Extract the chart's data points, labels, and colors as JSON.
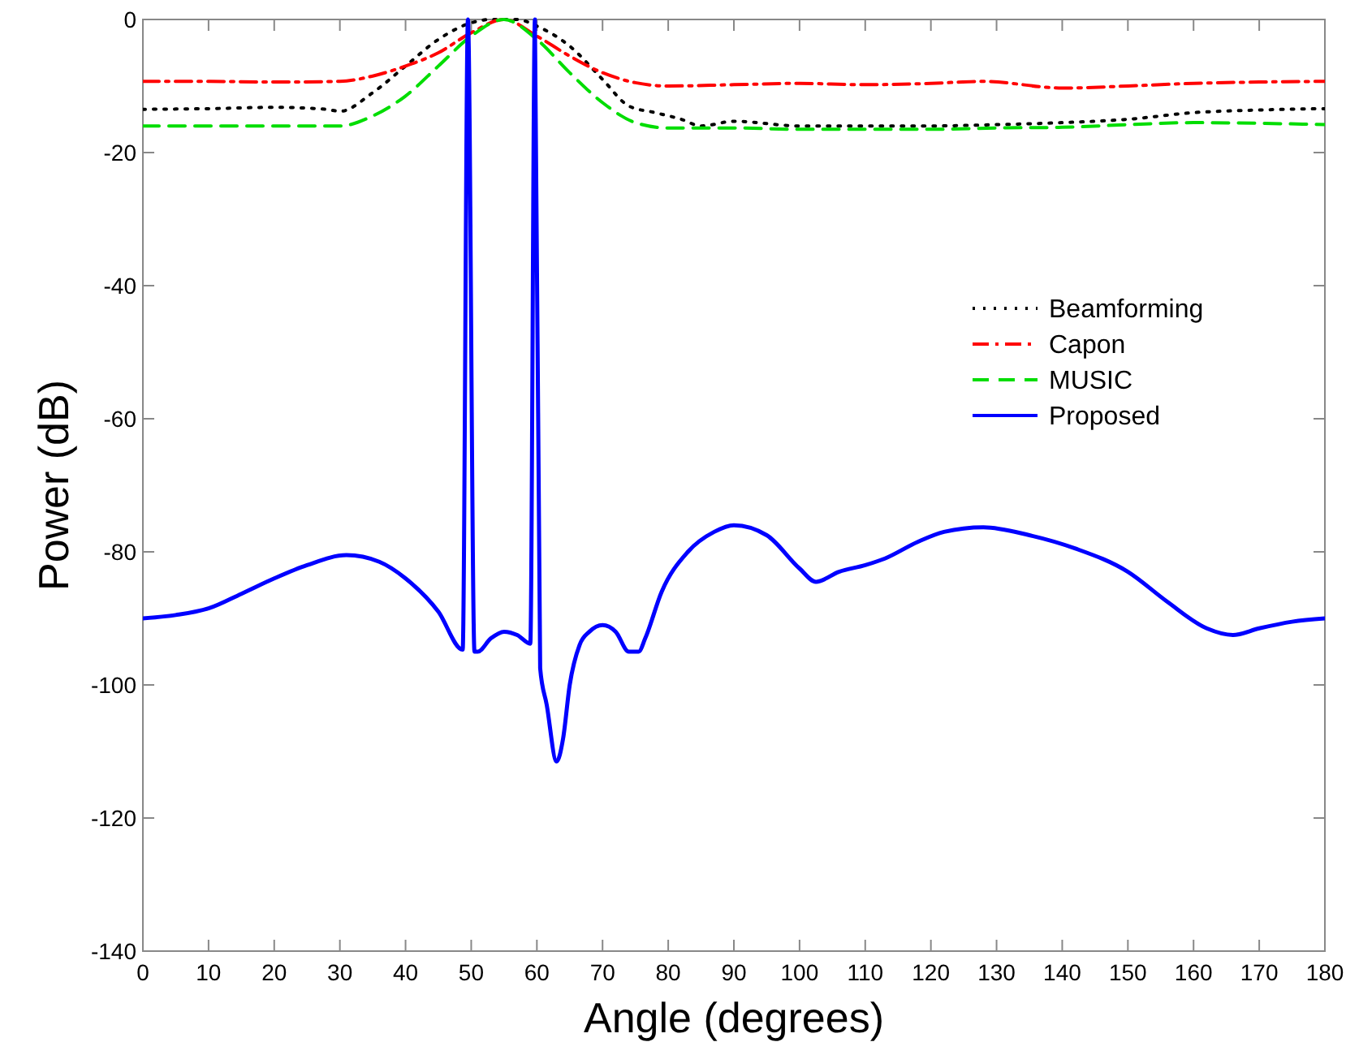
{
  "chart_data": {
    "type": "line",
    "xlabel": "Angle (degrees)",
    "ylabel": "Power (dB)",
    "xlim": [
      0,
      180
    ],
    "xticks": [
      0,
      10,
      20,
      30,
      40,
      50,
      60,
      70,
      80,
      90,
      100,
      110,
      120,
      130,
      140,
      150,
      160,
      170,
      180
    ],
    "ylim": [
      -140,
      0
    ],
    "yticks": [
      -140,
      -120,
      -100,
      -80,
      -60,
      -40,
      -20,
      0
    ],
    "grid": false,
    "legend": "right",
    "series": [
      {
        "name": "Beamforming",
        "color": "#000000",
        "line_style": "dotted",
        "x": [
          0,
          10,
          20,
          28,
          30,
          35,
          40,
          45,
          50,
          53,
          57,
          60,
          65,
          70,
          74,
          78,
          82,
          85,
          90,
          100,
          110,
          120,
          130,
          140,
          150,
          160,
          170,
          180
        ],
        "values": [
          -13.5,
          -13.4,
          -13.2,
          -13.5,
          -13.8,
          -11,
          -7,
          -3,
          -0.5,
          0,
          0,
          -1,
          -4,
          -9,
          -13,
          -14,
          -15,
          -16,
          -15.3,
          -16,
          -16,
          -16,
          -15.8,
          -15.5,
          -15,
          -14,
          -13.6,
          -13.4
        ]
      },
      {
        "name": "Capon",
        "color": "#ff0000",
        "line_style": "dashdot",
        "x": [
          0,
          10,
          20,
          30,
          35,
          40,
          45,
          50,
          55,
          60,
          65,
          70,
          75,
          80,
          90,
          100,
          110,
          120,
          128,
          140,
          150,
          160,
          170,
          180
        ],
        "values": [
          -9.3,
          -9.3,
          -9.4,
          -9.3,
          -8.5,
          -7,
          -5,
          -2,
          0,
          -2.5,
          -5.5,
          -8,
          -9.5,
          -10,
          -9.8,
          -9.6,
          -9.8,
          -9.6,
          -9.3,
          -10.3,
          -10,
          -9.6,
          -9.4,
          -9.3
        ]
      },
      {
        "name": "MUSIC",
        "color": "#00dd00",
        "line_style": "dashed",
        "x": [
          0,
          10,
          20,
          30,
          35,
          40,
          45,
          50,
          55,
          60,
          65,
          70,
          75,
          80,
          90,
          100,
          110,
          120,
          130,
          140,
          150,
          160,
          170,
          180
        ],
        "values": [
          -16,
          -16,
          -16,
          -16,
          -14.5,
          -11.5,
          -7,
          -2.5,
          0,
          -3,
          -8,
          -12.5,
          -15.5,
          -16.3,
          -16.3,
          -16.5,
          -16.5,
          -16.5,
          -16.3,
          -16.2,
          -15.8,
          -15.5,
          -15.6,
          -15.8
        ]
      },
      {
        "name": "Proposed",
        "color": "#0000ff",
        "line_style": "solid",
        "x": [
          0,
          5,
          10,
          15,
          20,
          25,
          31,
          36,
          40,
          45,
          48.7,
          49.5,
          50.5,
          51,
          53,
          55,
          57,
          59,
          59.7,
          60.5,
          61.5,
          63,
          64,
          65,
          66.5,
          68,
          70,
          72,
          74,
          75.5,
          76.5,
          79,
          83,
          87,
          90,
          95,
          100,
          102.5,
          106,
          110,
          113,
          118,
          122,
          128,
          135,
          142,
          150,
          156,
          162,
          166,
          170,
          175,
          180
        ],
        "values": [
          -90,
          -89.5,
          -88.5,
          -86.3,
          -84,
          -82,
          -80.5,
          -81.5,
          -84,
          -89,
          -94.7,
          0,
          -95,
          -95,
          -93,
          -92,
          -92.5,
          -93.8,
          0,
          -97.5,
          -103,
          -111.5,
          -108,
          -100,
          -94,
          -92,
          -91,
          -92,
          -95,
          -95,
          -93,
          -86,
          -80,
          -77,
          -76,
          -77.5,
          -82.5,
          -84.5,
          -83,
          -82,
          -81,
          -78.5,
          -77,
          -76.3,
          -77.5,
          -79.5,
          -83,
          -87.5,
          -91.5,
          -92.5,
          -91.5,
          -90.5,
          -90
        ]
      }
    ]
  }
}
